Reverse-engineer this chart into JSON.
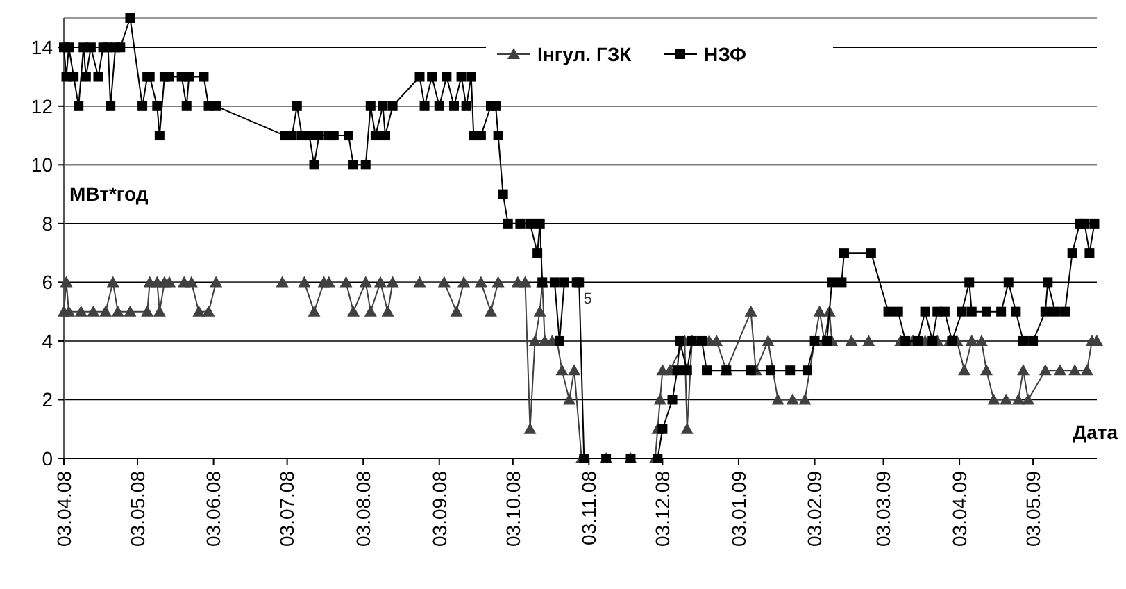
{
  "chart_data": {
    "type": "line",
    "xlabel": "Дата",
    "ylabel": "МВт*год",
    "xlim": [
      "2008-04-03",
      "2009-05-29"
    ],
    "xticks": [
      {
        "value": "2008-04-03",
        "label": "03.04.08"
      },
      {
        "value": "2008-05-03",
        "label": "03.05.08"
      },
      {
        "value": "2008-06-03",
        "label": "03.06.08"
      },
      {
        "value": "2008-07-03",
        "label": "03.07.08"
      },
      {
        "value": "2008-08-03",
        "label": "03.08.08"
      },
      {
        "value": "2008-09-03",
        "label": "03.09.08"
      },
      {
        "value": "2008-10-03",
        "label": "03.10.08"
      },
      {
        "value": "2008-11-03",
        "label": "03.11.08"
      },
      {
        "value": "2008-12-03",
        "label": "03.12.08"
      },
      {
        "value": "2009-01-03",
        "label": "03.01.09"
      },
      {
        "value": "2009-02-03",
        "label": "03.02.09"
      },
      {
        "value": "2009-03-03",
        "label": "03.03.09"
      },
      {
        "value": "2009-04-03",
        "label": "03.04.09"
      },
      {
        "value": "2009-05-03",
        "label": "03.05.09"
      }
    ],
    "ylim": [
      0,
      15
    ],
    "yticks": [
      0,
      2,
      4,
      6,
      8,
      10,
      12,
      14
    ],
    "grid": "y",
    "legend": "top",
    "annotations": [
      {
        "text": "5",
        "x": "2008-10-29",
        "y": 5.6
      }
    ],
    "series": [
      {
        "name": "Інгул. ГЗК",
        "color": "#404040",
        "marker": "triangle",
        "x": [
          "2008-04-03",
          "2008-04-04",
          "2008-04-05",
          "2008-04-10",
          "2008-04-15",
          "2008-04-20",
          "2008-04-23",
          "2008-04-25",
          "2008-04-30",
          "2008-05-07",
          "2008-05-08",
          "2008-05-11",
          "2008-05-12",
          "2008-05-14",
          "2008-05-16",
          "2008-05-22",
          "2008-05-25",
          "2008-05-28",
          "2008-06-01",
          "2008-06-04",
          "2008-07-01",
          "2008-07-10",
          "2008-07-14",
          "2008-07-18",
          "2008-07-20",
          "2008-07-27",
          "2008-07-30",
          "2008-08-04",
          "2008-08-06",
          "2008-08-10",
          "2008-08-13",
          "2008-08-15",
          "2008-08-26",
          "2008-09-05",
          "2008-09-10",
          "2008-09-13",
          "2008-09-20",
          "2008-09-24",
          "2008-09-27",
          "2008-10-05",
          "2008-10-08",
          "2008-10-10",
          "2008-10-12",
          "2008-10-14",
          "2008-10-15",
          "2008-10-16",
          "2008-10-19",
          "2008-10-21",
          "2008-10-23",
          "2008-10-26",
          "2008-10-28",
          "2008-10-31",
          "2008-11-10",
          "2008-11-20",
          "2008-11-30",
          "2008-12-01",
          "2008-12-02",
          "2008-12-03",
          "2008-12-06",
          "2008-12-12",
          "2008-12-13",
          "2008-12-15",
          "2008-12-22",
          "2008-12-25",
          "2008-12-29",
          "2009-01-08",
          "2009-01-10",
          "2009-01-15",
          "2009-01-19",
          "2009-01-25",
          "2009-01-30",
          "2009-02-05",
          "2009-02-07",
          "2009-02-09",
          "2009-02-10",
          "2009-02-18",
          "2009-02-25",
          "2009-03-10",
          "2009-03-15",
          "2009-03-20",
          "2009-03-25",
          "2009-03-30",
          "2009-04-02",
          "2009-04-05",
          "2009-04-08",
          "2009-04-12",
          "2009-04-14",
          "2009-04-17",
          "2009-04-22",
          "2009-04-27",
          "2009-04-29",
          "2009-05-01",
          "2009-05-08",
          "2009-05-14",
          "2009-05-20",
          "2009-05-25",
          "2009-05-27",
          "2009-05-29"
        ],
        "values": [
          5,
          6,
          5,
          5,
          5,
          5,
          6,
          5,
          5,
          5,
          6,
          6,
          5,
          6,
          6,
          6,
          6,
          5,
          5,
          6,
          6,
          6,
          5,
          6,
          6,
          6,
          5,
          6,
          5,
          6,
          5,
          6,
          6,
          6,
          5,
          6,
          6,
          5,
          6,
          6,
          6,
          1,
          4,
          5,
          6,
          4,
          4,
          4,
          3,
          2,
          3,
          0,
          0,
          0,
          0,
          1,
          2,
          3,
          3,
          4,
          1,
          4,
          4,
          4,
          3,
          5,
          3,
          4,
          2,
          2,
          2,
          5,
          4,
          5,
          4,
          4,
          4,
          4,
          4,
          4,
          4,
          4,
          4,
          3,
          4,
          4,
          3,
          2,
          2,
          2,
          3,
          2,
          3,
          3,
          3,
          3,
          4,
          4
        ]
      },
      {
        "name": "НЗФ",
        "color": "#000000",
        "marker": "square",
        "x": [
          "2008-04-03",
          "2008-04-04",
          "2008-04-05",
          "2008-04-07",
          "2008-04-09",
          "2008-04-11",
          "2008-04-12",
          "2008-04-14",
          "2008-04-17",
          "2008-04-19",
          "2008-04-21",
          "2008-04-22",
          "2008-04-24",
          "2008-04-26",
          "2008-04-30",
          "2008-05-05",
          "2008-05-07",
          "2008-05-08",
          "2008-05-11",
          "2008-05-12",
          "2008-05-14",
          "2008-05-16",
          "2008-05-21",
          "2008-05-23",
          "2008-05-24",
          "2008-05-30",
          "2008-06-01",
          "2008-06-04",
          "2008-07-02",
          "2008-07-05",
          "2008-07-07",
          "2008-07-09",
          "2008-07-12",
          "2008-07-14",
          "2008-07-16",
          "2008-07-20",
          "2008-07-22",
          "2008-07-28",
          "2008-07-30",
          "2008-08-04",
          "2008-08-06",
          "2008-08-08",
          "2008-08-11",
          "2008-08-12",
          "2008-08-15",
          "2008-08-26",
          "2008-08-28",
          "2008-08-31",
          "2008-09-03",
          "2008-09-06",
          "2008-09-09",
          "2008-09-12",
          "2008-09-14",
          "2008-09-16",
          "2008-09-17",
          "2008-09-20",
          "2008-09-24",
          "2008-09-26",
          "2008-09-27",
          "2008-09-29",
          "2008-10-01",
          "2008-10-06",
          "2008-10-10",
          "2008-10-13",
          "2008-10-14",
          "2008-10-15",
          "2008-10-20",
          "2008-10-22",
          "2008-10-24",
          "2008-10-29",
          "2008-10-30",
          "2008-11-01",
          "2008-11-10",
          "2008-11-20",
          "2008-12-01",
          "2008-12-03",
          "2008-12-07",
          "2008-12-09",
          "2008-12-10",
          "2008-12-13",
          "2008-12-15",
          "2008-12-19",
          "2008-12-21",
          "2008-12-29",
          "2009-01-08",
          "2009-01-16",
          "2009-01-24",
          "2009-01-31",
          "2009-02-03",
          "2009-02-08",
          "2009-02-10",
          "2009-02-14",
          "2009-02-15",
          "2009-02-26",
          "2009-03-05",
          "2009-03-09",
          "2009-03-12",
          "2009-03-17",
          "2009-03-20",
          "2009-03-23",
          "2009-03-25",
          "2009-03-28",
          "2009-03-31",
          "2009-04-04",
          "2009-04-07",
          "2009-04-08",
          "2009-04-14",
          "2009-04-20",
          "2009-04-23",
          "2009-04-26",
          "2009-04-29",
          "2009-05-03",
          "2009-05-08",
          "2009-05-09",
          "2009-05-12",
          "2009-05-16",
          "2009-05-19",
          "2009-05-22",
          "2009-05-24",
          "2009-05-26",
          "2009-05-28"
        ],
        "values": [
          14,
          13,
          14,
          13,
          12,
          14,
          13,
          14,
          13,
          14,
          14,
          12,
          14,
          14,
          15,
          12,
          13,
          13,
          12,
          11,
          13,
          13,
          13,
          12,
          13,
          13,
          12,
          12,
          11,
          11,
          12,
          11,
          11,
          10,
          11,
          11,
          11,
          11,
          10,
          10,
          12,
          11,
          12,
          11,
          12,
          13,
          12,
          13,
          12,
          13,
          12,
          13,
          12,
          13,
          11,
          11,
          12,
          12,
          11,
          9,
          8,
          8,
          8,
          7,
          8,
          6,
          6,
          4,
          6,
          6,
          6,
          0,
          0,
          0,
          0,
          1,
          2,
          3,
          4,
          3,
          4,
          4,
          3,
          3,
          3,
          3,
          3,
          3,
          4,
          4,
          6,
          6,
          7,
          7,
          5,
          5,
          4,
          4,
          5,
          4,
          5,
          5,
          4,
          5,
          6,
          5,
          5,
          5,
          6,
          5,
          4,
          4,
          5,
          6,
          5,
          5,
          7,
          8,
          8,
          7,
          8
        ]
      }
    ]
  }
}
